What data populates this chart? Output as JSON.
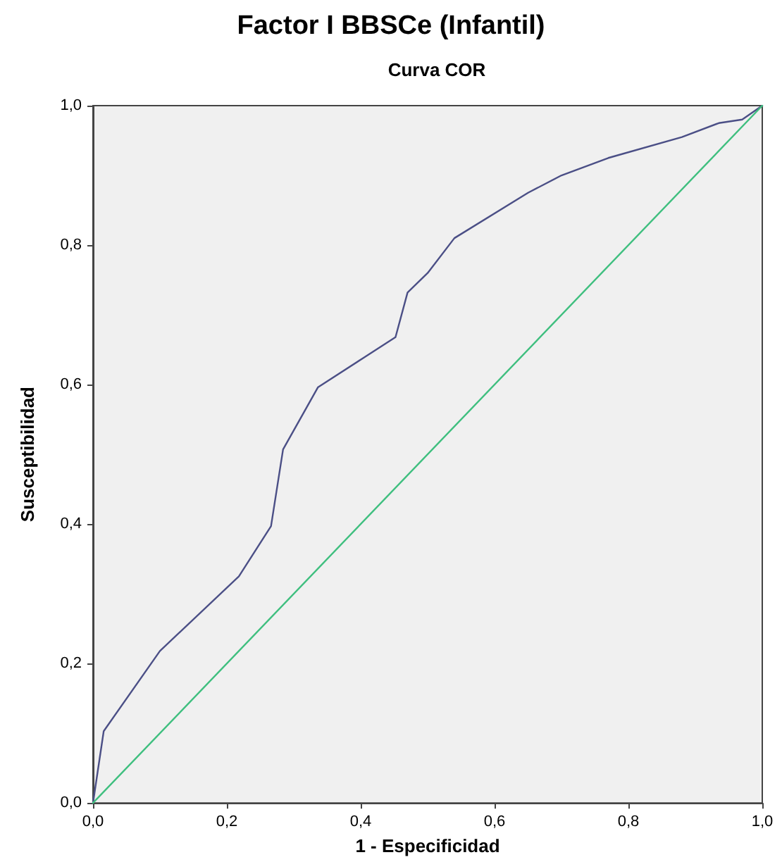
{
  "chart_data": {
    "type": "line",
    "title": "Factor I BBSCe (Infantil)",
    "subtitle": "Curva COR",
    "xlabel": "1 - Especificidad",
    "ylabel": "Susceptibilidad",
    "series": [
      {
        "color": "#4b4f86",
        "x": [
          0,
          0.016,
          0.1,
          0.218,
          0.266,
          0.284,
          0.336,
          0.452,
          0.47,
          0.5,
          0.54,
          0.65,
          0.7,
          0.77,
          0.88,
          0.935,
          0.97,
          1
        ],
        "values": [
          0,
          0.103,
          0.218,
          0.325,
          0.397,
          0.507,
          0.596,
          0.668,
          0.732,
          0.76,
          0.81,
          0.875,
          0.9,
          0.925,
          0.955,
          0.975,
          0.98,
          1
        ]
      },
      {
        "color": "#3fbf7f",
        "x": [
          0,
          1
        ],
        "values": [
          0,
          1
        ]
      }
    ],
    "xlim": [
      0,
      1
    ],
    "ylim": [
      0,
      1
    ],
    "xticks": [
      {
        "value": 0,
        "label": "0,0"
      },
      {
        "value": 0.2,
        "label": "0,2"
      },
      {
        "value": 0.4,
        "label": "0,4"
      },
      {
        "value": 0.6,
        "label": "0,6"
      },
      {
        "value": 0.8,
        "label": "0,8"
      },
      {
        "value": 1,
        "label": "1,0"
      }
    ],
    "yticks": [
      {
        "value": 0,
        "label": "0,0"
      },
      {
        "value": 0.2,
        "label": "0,2"
      },
      {
        "value": 0.4,
        "label": "0,4"
      },
      {
        "value": 0.6,
        "label": "0,6"
      },
      {
        "value": 0.8,
        "label": "0,8"
      },
      {
        "value": 1,
        "label": "1,0"
      }
    ],
    "grid": false,
    "marker": "none",
    "line_style": "solid"
  }
}
